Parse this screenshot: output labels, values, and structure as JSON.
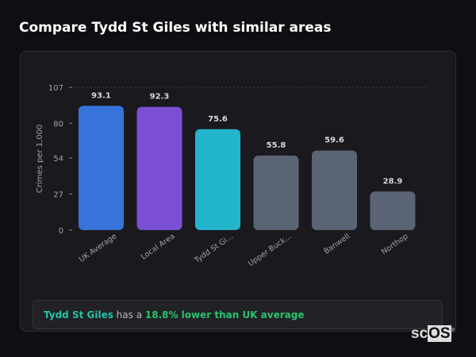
{
  "header": {
    "title": "Compare Tydd St Giles with similar areas"
  },
  "chart_data": {
    "type": "bar",
    "categories": [
      "UK Average",
      "Local Area",
      "Tydd St Gi...",
      "Upper Buck...",
      "Banwell",
      "Northop"
    ],
    "values": [
      93.1,
      92.3,
      75.6,
      55.8,
      59.6,
      28.9
    ],
    "value_labels": [
      "93.1",
      "92.3",
      "75.6",
      "55.8",
      "59.6",
      "28.9"
    ],
    "colors": [
      "#3674d9",
      "#7a4fd4",
      "#22b5cc",
      "#5b6475",
      "#5b6475",
      "#5b6475"
    ],
    "ylabel": "Crimes per 1,000",
    "yticks": [
      0,
      27,
      54,
      80,
      107
    ],
    "ylim": [
      0,
      107
    ],
    "grid": "top dashed line only",
    "legend": "none"
  },
  "summary": {
    "area": "Tydd St Giles",
    "middle": " has a ",
    "comparison": "18.8% lower than UK average"
  },
  "logo": {
    "text_a": "sc",
    "text_b": "OS",
    "mark": "®"
  }
}
